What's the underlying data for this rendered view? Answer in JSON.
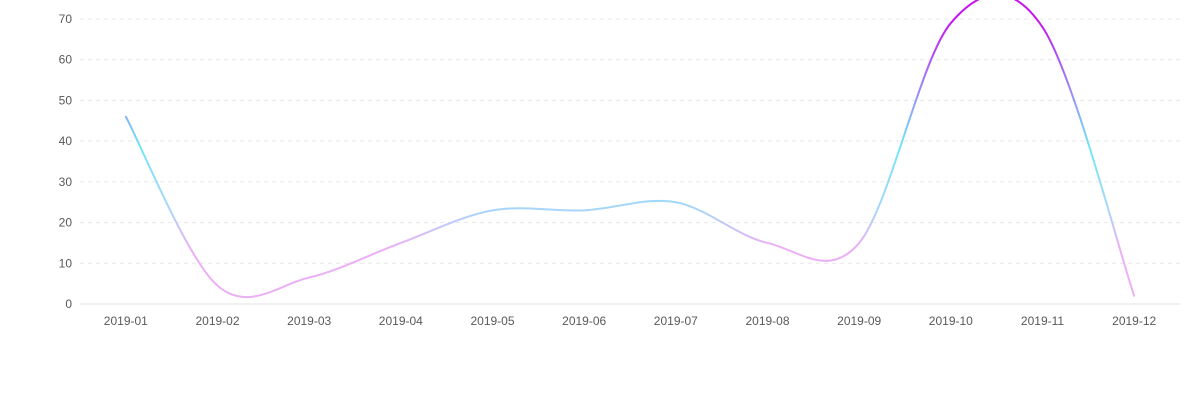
{
  "chart_data": {
    "type": "line",
    "smooth": true,
    "categories": [
      "2019-01",
      "2019-02",
      "2019-03",
      "2019-04",
      "2019-05",
      "2019-06",
      "2019-07",
      "2019-08",
      "2019-09",
      "2019-10",
      "2019-11",
      "2019-12"
    ],
    "series": [
      {
        "values": [
          46,
          4.5,
          6.5,
          15,
          23,
          23,
          25,
          15,
          15,
          69,
          68,
          2
        ]
      }
    ],
    "ylim": [
      0,
      70
    ],
    "yticks": [
      0,
      10,
      20,
      30,
      40,
      50,
      60,
      70
    ],
    "grid": "horizontal dashed",
    "legend": "none",
    "title": "",
    "xlabel": "",
    "ylabel": ""
  },
  "colors": {
    "line_gradient": [
      "#ebb0f5",
      "#a9d6fb",
      "#72e6f5",
      "#9f7cf7",
      "#c711f0"
    ],
    "grid": "#e8e8e8",
    "axis": "#e0e0e0",
    "tick_text": "#595959"
  }
}
